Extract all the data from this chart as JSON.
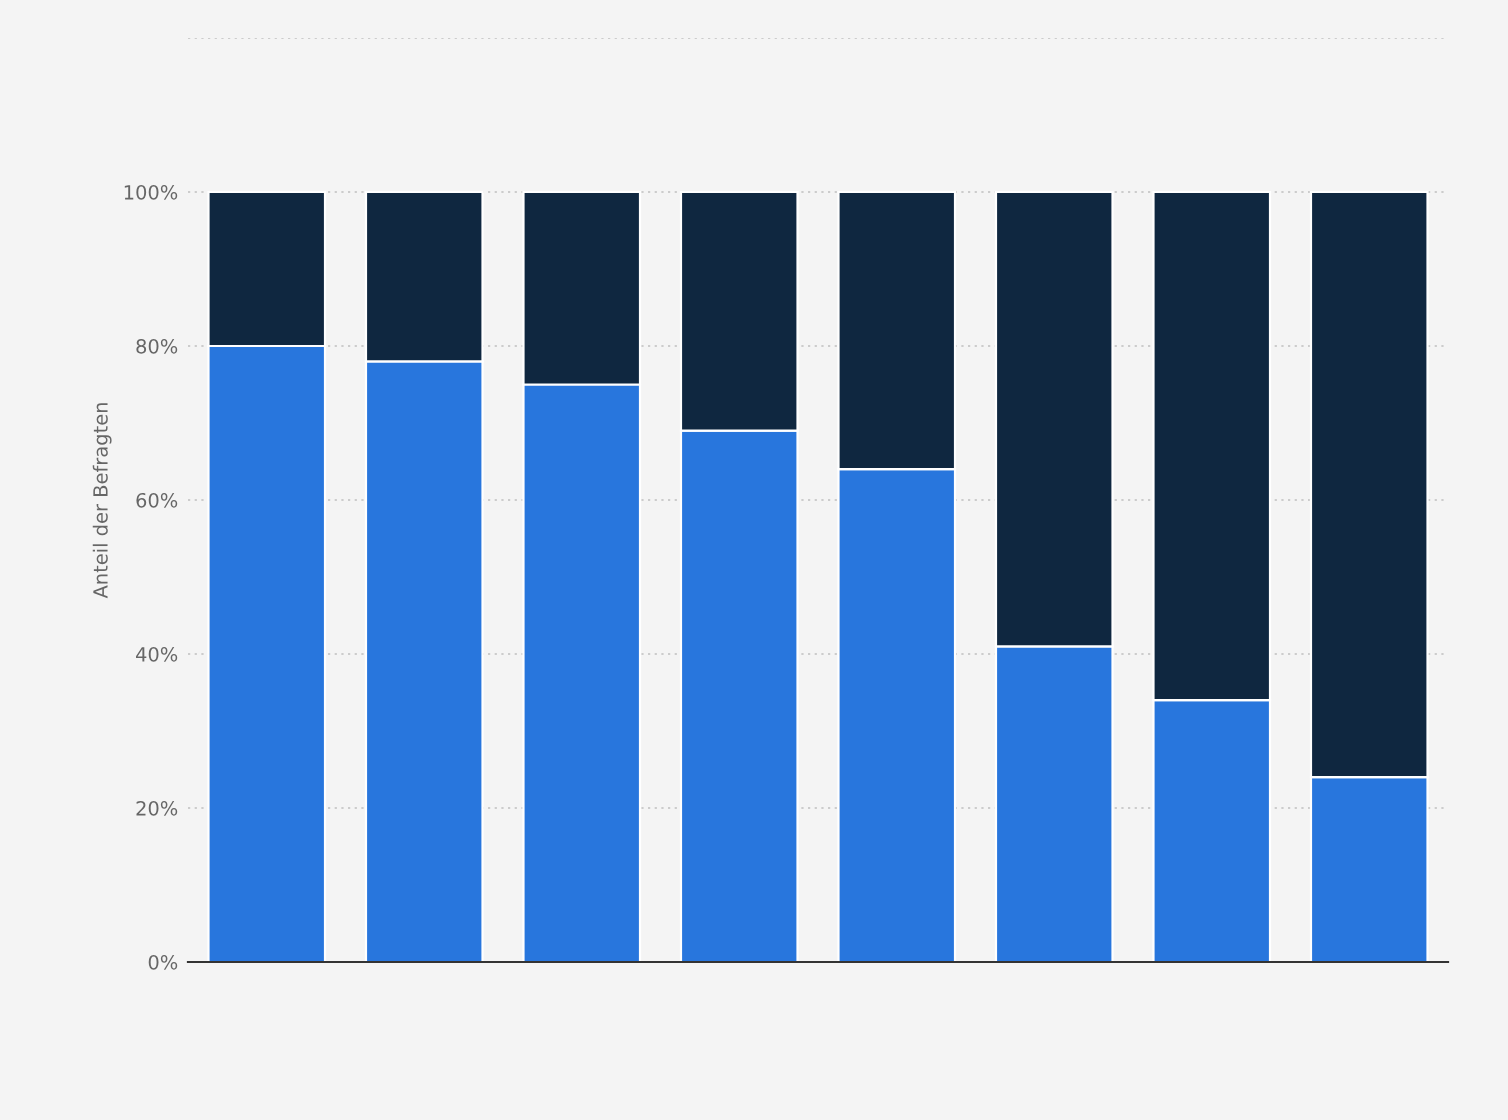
{
  "chart_data": {
    "type": "bar",
    "stacked": true,
    "ylabel": "Anteil der Befragten",
    "categories": [
      null,
      null,
      null,
      null,
      null,
      null,
      null,
      null
    ],
    "series": [
      {
        "color": "#2876dd",
        "values": [
          80,
          78,
          75,
          69,
          64,
          41,
          34,
          24
        ]
      },
      {
        "color": "#0f2740",
        "values": [
          20,
          22,
          25,
          31,
          36,
          59,
          66,
          76
        ]
      }
    ],
    "ylim": [
      0,
      120
    ],
    "yticks": [
      {
        "value": 0,
        "label": "0%"
      },
      {
        "value": 20,
        "label": "20%"
      },
      {
        "value": 40,
        "label": "40%"
      },
      {
        "value": 60,
        "label": "60%"
      },
      {
        "value": 80,
        "label": "80%"
      },
      {
        "value": 100,
        "label": "100%"
      },
      {
        "value": 120,
        "label": null
      }
    ],
    "grid": "y"
  }
}
